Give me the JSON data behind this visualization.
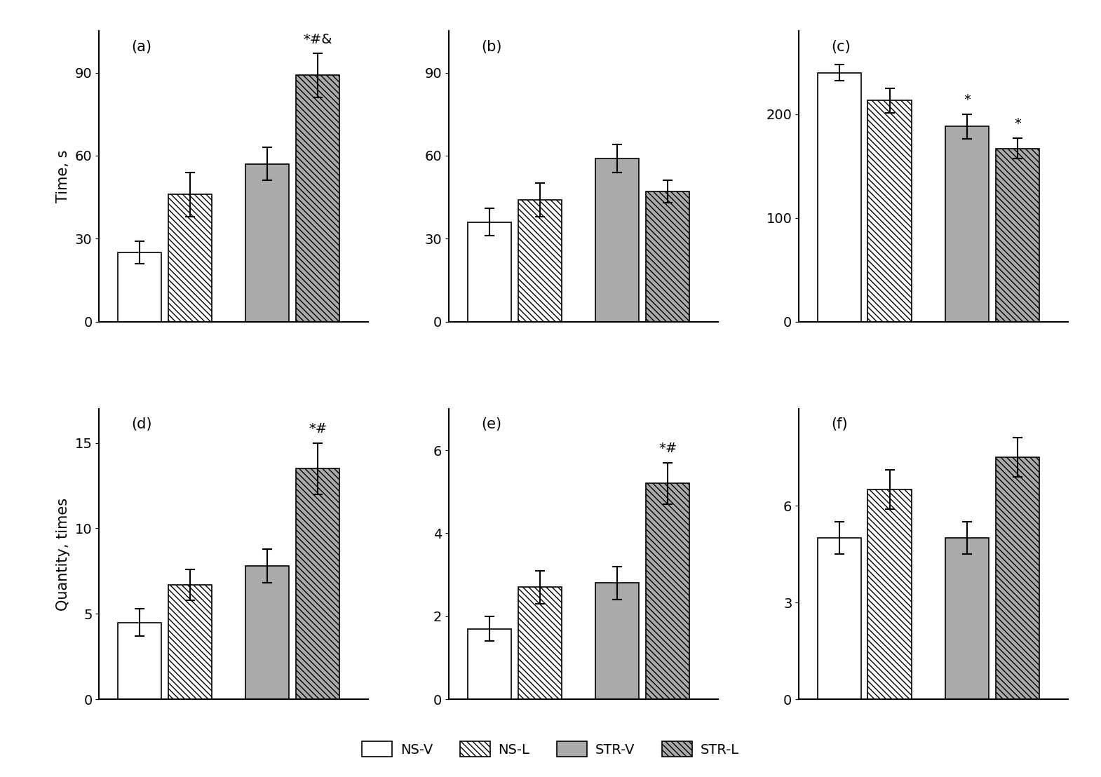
{
  "panels": [
    {
      "label": "(a)",
      "ylabel": "Time, s",
      "ylim": [
        0,
        105
      ],
      "yticks": [
        0,
        30,
        60,
        90
      ],
      "values": [
        25,
        46,
        57,
        89
      ],
      "errors": [
        4,
        8,
        6,
        8
      ],
      "annotations": {
        "3": "*#&"
      }
    },
    {
      "label": "(b)",
      "ylabel": "",
      "ylim": [
        0,
        105
      ],
      "yticks": [
        0,
        30,
        60,
        90
      ],
      "values": [
        36,
        44,
        59,
        47
      ],
      "errors": [
        5,
        6,
        5,
        4
      ],
      "annotations": {}
    },
    {
      "label": "(c)",
      "ylabel": "",
      "ylim": [
        0,
        280
      ],
      "yticks": [
        0,
        100,
        200
      ],
      "values": [
        240,
        213,
        188,
        167
      ],
      "errors": [
        8,
        12,
        12,
        10
      ],
      "annotations": {
        "2": "*",
        "3": "*"
      }
    },
    {
      "label": "(d)",
      "ylabel": "Quantity, times",
      "ylim": [
        0,
        17
      ],
      "yticks": [
        0,
        5,
        10,
        15
      ],
      "values": [
        4.5,
        6.7,
        7.8,
        13.5
      ],
      "errors": [
        0.8,
        0.9,
        1.0,
        1.5
      ],
      "annotations": {
        "3": "*#"
      }
    },
    {
      "label": "(e)",
      "ylabel": "",
      "ylim": [
        0,
        7
      ],
      "yticks": [
        0,
        2,
        4,
        6
      ],
      "values": [
        1.7,
        2.7,
        2.8,
        5.2
      ],
      "errors": [
        0.3,
        0.4,
        0.4,
        0.5
      ],
      "annotations": {
        "3": "*#"
      }
    },
    {
      "label": "(f)",
      "ylabel": "",
      "ylim": [
        0,
        9
      ],
      "yticks": [
        0,
        3,
        6
      ],
      "values": [
        5.0,
        6.5,
        5.0,
        7.5
      ],
      "errors": [
        0.5,
        0.6,
        0.5,
        0.6
      ],
      "annotations": {}
    }
  ],
  "bar_colors": [
    "white",
    "white",
    "#aaaaaa",
    "#aaaaaa"
  ],
  "bar_hatches": [
    null,
    "\\\\\\\\",
    null,
    "\\\\\\\\"
  ],
  "bar_edgecolor": "black",
  "legend_labels": [
    "NS-V",
    "NS-L",
    "STR-V",
    "STR-L"
  ],
  "legend_hatches": [
    null,
    "\\\\\\\\",
    null,
    "\\\\\\\\"
  ],
  "legend_colors": [
    "white",
    "white",
    "#aaaaaa",
    "#aaaaaa"
  ],
  "x_positions": [
    0.7,
    1.45,
    2.6,
    3.35
  ],
  "bar_width": 0.65,
  "xlim": [
    0.1,
    4.1
  ]
}
